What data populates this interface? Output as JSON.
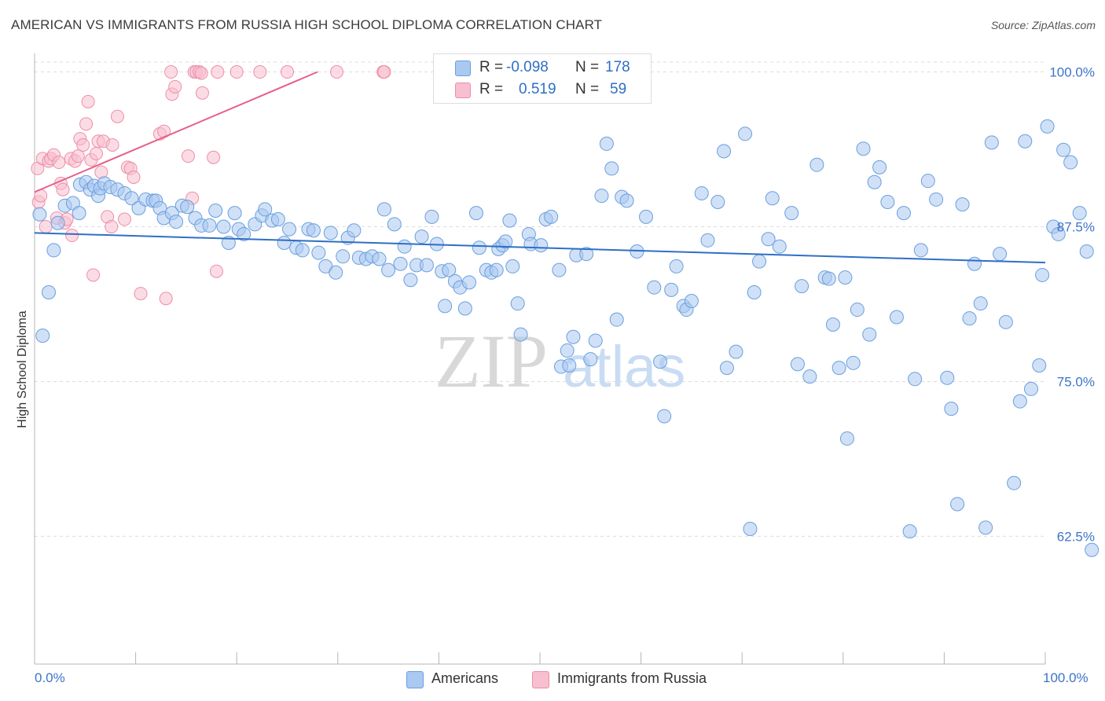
{
  "title": "AMERICAN VS IMMIGRANTS FROM RUSSIA HIGH SCHOOL DIPLOMA CORRELATION CHART",
  "source": "Source: ZipAtlas.com",
  "colors": {
    "americans_fill": "#a9c9f1",
    "americans_stroke": "#6a9fde",
    "americans_line": "#2f6fc4",
    "russia_fill": "#f7bfd0",
    "russia_stroke": "#ee8ea9",
    "russia_line": "#e5608a",
    "axis_text": "#3d74c8",
    "grid": "#dddddd"
  },
  "legend": {
    "row1": {
      "r_label": "R =",
      "r_value": "-0.098",
      "n_label": "N =",
      "n_value": "178"
    },
    "row2": {
      "r_label": "R =",
      "r_value": "0.519",
      "n_label": "N =",
      "n_value": "59"
    }
  },
  "bottom_legend": {
    "americans": "Americans",
    "russia": "Immigrants from Russia"
  },
  "chart_data": {
    "type": "scatter",
    "title": "AMERICAN VS IMMIGRANTS FROM RUSSIA HIGH SCHOOL DIPLOMA CORRELATION CHART",
    "xlabel": "",
    "ylabel": "High School Diploma",
    "xlim": [
      0,
      100
    ],
    "ylim": [
      52.5,
      102
    ],
    "x_tick_labels": [
      "0.0%",
      "100.0%"
    ],
    "y_ticks": [
      62.5,
      75.0,
      87.5,
      100.0
    ],
    "y_tick_labels": [
      "62.5%",
      "75.0%",
      "87.5%",
      "100.0%"
    ],
    "watermark": "ZIPatlas",
    "series": [
      {
        "name": "Americans",
        "R": -0.098,
        "N": 178,
        "trend": {
          "x": [
            0,
            100
          ],
          "y": [
            87.0,
            84.6
          ]
        },
        "points": [
          [
            0.5,
            88.5
          ],
          [
            0.8,
            78.7
          ],
          [
            1.4,
            82.2
          ],
          [
            1.9,
            85.6
          ],
          [
            2.3,
            87.8
          ],
          [
            3.0,
            89.2
          ],
          [
            3.8,
            89.4
          ],
          [
            4.4,
            88.6
          ],
          [
            4.5,
            90.9
          ],
          [
            5.1,
            91.1
          ],
          [
            5.5,
            90.5
          ],
          [
            5.9,
            90.8
          ],
          [
            6.3,
            90.0
          ],
          [
            6.5,
            90.6
          ],
          [
            6.9,
            91.0
          ],
          [
            7.5,
            90.7
          ],
          [
            8.2,
            90.5
          ],
          [
            8.9,
            90.2
          ],
          [
            9.6,
            89.8
          ],
          [
            10.3,
            89.0
          ],
          [
            11.0,
            89.7
          ],
          [
            11.7,
            89.6
          ],
          [
            12.0,
            89.6
          ],
          [
            12.4,
            89.0
          ],
          [
            12.8,
            88.2
          ],
          [
            13.6,
            88.6
          ],
          [
            14.0,
            87.9
          ],
          [
            14.6,
            89.2
          ],
          [
            15.1,
            89.1
          ],
          [
            15.9,
            88.2
          ],
          [
            16.5,
            87.6
          ],
          [
            17.3,
            87.6
          ],
          [
            17.9,
            88.8
          ],
          [
            18.7,
            87.5
          ],
          [
            19.2,
            86.2
          ],
          [
            19.8,
            88.6
          ],
          [
            20.2,
            87.3
          ],
          [
            20.7,
            86.9
          ],
          [
            21.8,
            87.7
          ],
          [
            22.5,
            88.4
          ],
          [
            22.8,
            88.9
          ],
          [
            23.5,
            88.0
          ],
          [
            24.1,
            88.1
          ],
          [
            24.7,
            86.2
          ],
          [
            25.2,
            87.3
          ],
          [
            25.9,
            85.8
          ],
          [
            26.5,
            85.6
          ],
          [
            27.1,
            87.3
          ],
          [
            27.6,
            87.2
          ],
          [
            28.1,
            85.4
          ],
          [
            28.8,
            84.3
          ],
          [
            29.3,
            87.0
          ],
          [
            29.8,
            83.8
          ],
          [
            30.5,
            85.1
          ],
          [
            31.0,
            86.6
          ],
          [
            31.6,
            87.2
          ],
          [
            32.1,
            85.0
          ],
          [
            32.8,
            84.9
          ],
          [
            33.4,
            85.1
          ],
          [
            34.1,
            84.9
          ],
          [
            34.6,
            88.9
          ],
          [
            35.0,
            84.0
          ],
          [
            35.6,
            87.7
          ],
          [
            36.2,
            84.5
          ],
          [
            36.6,
            85.9
          ],
          [
            37.2,
            83.2
          ],
          [
            37.8,
            84.4
          ],
          [
            38.3,
            86.7
          ],
          [
            38.8,
            84.4
          ],
          [
            39.3,
            88.3
          ],
          [
            39.8,
            86.1
          ],
          [
            40.3,
            83.9
          ],
          [
            40.6,
            81.1
          ],
          [
            41.0,
            84.0
          ],
          [
            41.6,
            83.1
          ],
          [
            42.1,
            82.6
          ],
          [
            42.6,
            80.9
          ],
          [
            43.0,
            83.0
          ],
          [
            43.7,
            88.6
          ],
          [
            44.0,
            85.8
          ],
          [
            44.7,
            84.0
          ],
          [
            45.2,
            83.8
          ],
          [
            45.7,
            84.0
          ],
          [
            45.9,
            85.7
          ],
          [
            46.3,
            86.0
          ],
          [
            46.6,
            86.3
          ],
          [
            47.0,
            88.0
          ],
          [
            47.3,
            84.3
          ],
          [
            47.8,
            81.3
          ],
          [
            48.1,
            78.8
          ],
          [
            48.9,
            86.9
          ],
          [
            49.1,
            86.1
          ],
          [
            50.1,
            86.0
          ],
          [
            50.6,
            88.1
          ],
          [
            51.1,
            88.3
          ],
          [
            51.9,
            84.0
          ],
          [
            52.1,
            76.2
          ],
          [
            52.7,
            77.5
          ],
          [
            52.9,
            76.3
          ],
          [
            53.3,
            78.6
          ],
          [
            53.6,
            85.2
          ],
          [
            54.6,
            85.3
          ],
          [
            55.0,
            76.8
          ],
          [
            55.5,
            78.3
          ],
          [
            56.1,
            90.0
          ],
          [
            56.6,
            94.2
          ],
          [
            57.1,
            92.2
          ],
          [
            57.6,
            80.0
          ],
          [
            58.1,
            89.9
          ],
          [
            58.6,
            89.6
          ],
          [
            59.6,
            85.5
          ],
          [
            60.5,
            88.3
          ],
          [
            61.3,
            82.6
          ],
          [
            61.9,
            76.6
          ],
          [
            62.3,
            72.2
          ],
          [
            63.0,
            82.4
          ],
          [
            63.5,
            84.3
          ],
          [
            64.2,
            81.1
          ],
          [
            64.5,
            80.8
          ],
          [
            65.0,
            81.5
          ],
          [
            66.0,
            90.2
          ],
          [
            66.6,
            86.4
          ],
          [
            67.6,
            89.5
          ],
          [
            68.2,
            93.6
          ],
          [
            68.5,
            76.1
          ],
          [
            69.4,
            77.4
          ],
          [
            70.3,
            95.0
          ],
          [
            70.8,
            63.1
          ],
          [
            71.2,
            82.2
          ],
          [
            71.7,
            84.7
          ],
          [
            72.6,
            86.5
          ],
          [
            73.0,
            89.8
          ],
          [
            73.7,
            85.9
          ],
          [
            74.9,
            88.6
          ],
          [
            75.5,
            76.4
          ],
          [
            75.9,
            82.7
          ],
          [
            76.7,
            75.4
          ],
          [
            77.4,
            92.5
          ],
          [
            78.2,
            83.4
          ],
          [
            78.6,
            83.3
          ],
          [
            79.0,
            79.6
          ],
          [
            79.6,
            76.1
          ],
          [
            80.2,
            83.4
          ],
          [
            80.4,
            70.4
          ],
          [
            81.0,
            76.5
          ],
          [
            81.4,
            80.8
          ],
          [
            82.0,
            93.8
          ],
          [
            82.6,
            78.8
          ],
          [
            83.1,
            91.1
          ],
          [
            83.6,
            92.3
          ],
          [
            84.4,
            89.5
          ],
          [
            85.3,
            80.2
          ],
          [
            86.0,
            88.6
          ],
          [
            86.6,
            62.9
          ],
          [
            87.1,
            75.2
          ],
          [
            87.7,
            85.6
          ],
          [
            88.4,
            91.2
          ],
          [
            89.2,
            89.7
          ],
          [
            90.3,
            75.3
          ],
          [
            90.7,
            72.8
          ],
          [
            91.3,
            65.1
          ],
          [
            91.8,
            89.3
          ],
          [
            92.5,
            80.1
          ],
          [
            93.0,
            84.5
          ],
          [
            93.6,
            81.3
          ],
          [
            94.1,
            63.2
          ],
          [
            94.7,
            94.3
          ],
          [
            95.5,
            85.3
          ],
          [
            96.1,
            79.8
          ],
          [
            96.9,
            66.8
          ],
          [
            97.5,
            73.4
          ],
          [
            98.0,
            94.4
          ],
          [
            98.6,
            74.4
          ],
          [
            99.4,
            76.3
          ],
          [
            99.7,
            83.6
          ],
          [
            100.2,
            95.6
          ],
          [
            100.8,
            87.5
          ],
          [
            101.3,
            86.9
          ],
          [
            101.8,
            93.7
          ],
          [
            102.5,
            92.7
          ],
          [
            103.4,
            88.6
          ],
          [
            104.1,
            85.5
          ],
          [
            104.6,
            61.4
          ]
        ]
      },
      {
        "name": "Immigrants from Russia",
        "R": 0.519,
        "N": 59,
        "trend": {
          "x": [
            0,
            28
          ],
          "y": [
            90.3,
            100.0
          ]
        },
        "points": [
          [
            0.3,
            92.2
          ],
          [
            0.4,
            89.5
          ],
          [
            0.6,
            90.0
          ],
          [
            0.8,
            93.0
          ],
          [
            1.1,
            87.5
          ],
          [
            1.4,
            92.8
          ],
          [
            1.6,
            93.0
          ],
          [
            1.9,
            93.3
          ],
          [
            2.2,
            88.2
          ],
          [
            2.4,
            92.7
          ],
          [
            2.6,
            91.0
          ],
          [
            2.8,
            90.5
          ],
          [
            3.0,
            87.8
          ],
          [
            3.2,
            88.1
          ],
          [
            3.6,
            93.0
          ],
          [
            3.7,
            86.8
          ],
          [
            4.0,
            92.8
          ],
          [
            4.3,
            93.2
          ],
          [
            4.5,
            94.6
          ],
          [
            4.8,
            94.1
          ],
          [
            5.1,
            95.8
          ],
          [
            5.3,
            97.6
          ],
          [
            5.6,
            92.9
          ],
          [
            5.8,
            83.6
          ],
          [
            6.1,
            93.4
          ],
          [
            6.3,
            94.4
          ],
          [
            6.6,
            91.9
          ],
          [
            6.8,
            94.4
          ],
          [
            7.2,
            88.3
          ],
          [
            7.6,
            87.5
          ],
          [
            7.7,
            94.1
          ],
          [
            8.2,
            96.4
          ],
          [
            8.9,
            88.1
          ],
          [
            9.2,
            92.3
          ],
          [
            9.5,
            92.2
          ],
          [
            9.8,
            91.5
          ],
          [
            10.5,
            82.1
          ],
          [
            12.4,
            95.0
          ],
          [
            12.8,
            95.2
          ],
          [
            13.0,
            81.7
          ],
          [
            13.5,
            100.0
          ],
          [
            13.6,
            98.2
          ],
          [
            13.9,
            98.8
          ],
          [
            15.2,
            93.2
          ],
          [
            15.6,
            89.8
          ],
          [
            15.8,
            100.0
          ],
          [
            16.0,
            100.0
          ],
          [
            16.3,
            100.0
          ],
          [
            16.5,
            99.9
          ],
          [
            16.6,
            98.3
          ],
          [
            17.7,
            93.1
          ],
          [
            18.0,
            83.9
          ],
          [
            18.1,
            100.0
          ],
          [
            20.0,
            100.0
          ],
          [
            22.3,
            100.0
          ],
          [
            25.0,
            100.0
          ],
          [
            29.9,
            100.0
          ],
          [
            34.5,
            100.0
          ],
          [
            34.6,
            100.0
          ]
        ]
      }
    ]
  }
}
